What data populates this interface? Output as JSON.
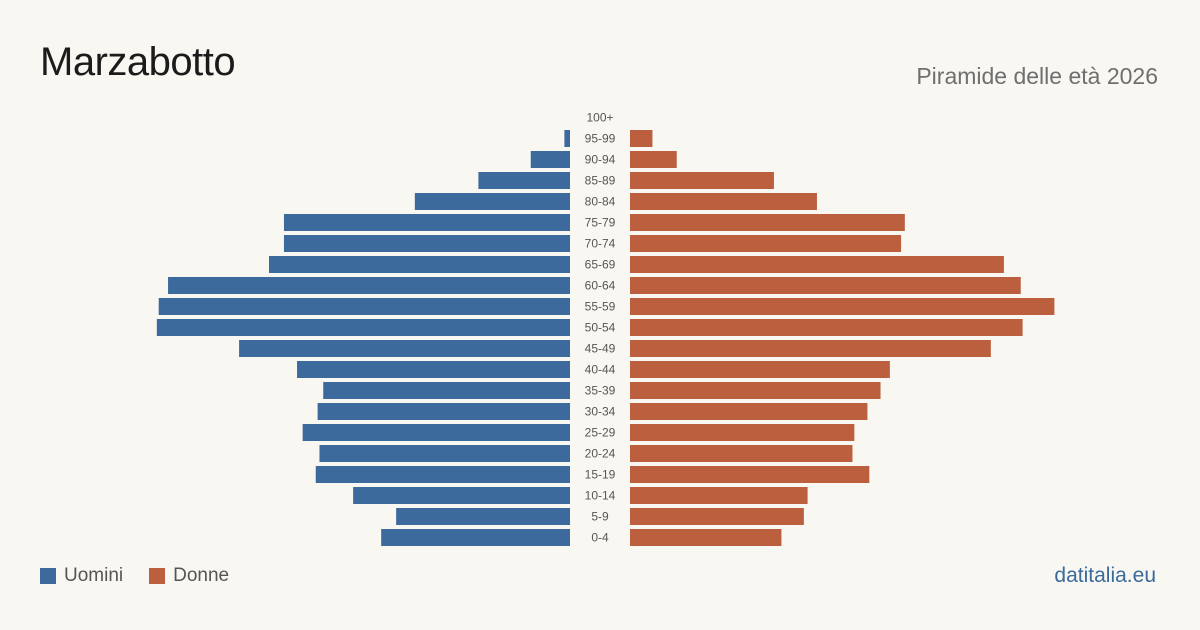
{
  "title": "Marzabotto",
  "subtitle": "Piramide delle età 2026",
  "source": "datitalia.eu",
  "colors": {
    "male": "#3d6a9c",
    "female": "#bb5f3e",
    "label": "#555555",
    "background": "#f9f7f2"
  },
  "legend": [
    {
      "label": "Uomini",
      "color": "#3d6a9c"
    },
    {
      "label": "Donne",
      "color": "#bb5f3e"
    }
  ],
  "chart_data": {
    "type": "bar",
    "orientation": "horizontal-pyramid",
    "categories": [
      "100+",
      "95-99",
      "90-94",
      "85-89",
      "80-84",
      "75-79",
      "70-74",
      "65-69",
      "60-64",
      "55-59",
      "50-54",
      "45-49",
      "40-44",
      "35-39",
      "30-34",
      "25-29",
      "20-24",
      "15-19",
      "10-14",
      "5-9",
      "0-4"
    ],
    "series": [
      {
        "name": "Uomini",
        "values": [
          0,
          3,
          21,
          49,
          83,
          153,
          153,
          161,
          215,
          220,
          221,
          177,
          146,
          132,
          135,
          143,
          134,
          136,
          116,
          93,
          101
        ]
      },
      {
        "name": "Donne",
        "values": [
          0,
          12,
          25,
          77,
          100,
          147,
          145,
          200,
          209,
          227,
          210,
          193,
          139,
          134,
          127,
          120,
          119,
          128,
          95,
          93,
          81
        ]
      }
    ],
    "xlim": [
      0,
      230
    ],
    "legend_position": "bottom-left",
    "grid": false
  }
}
